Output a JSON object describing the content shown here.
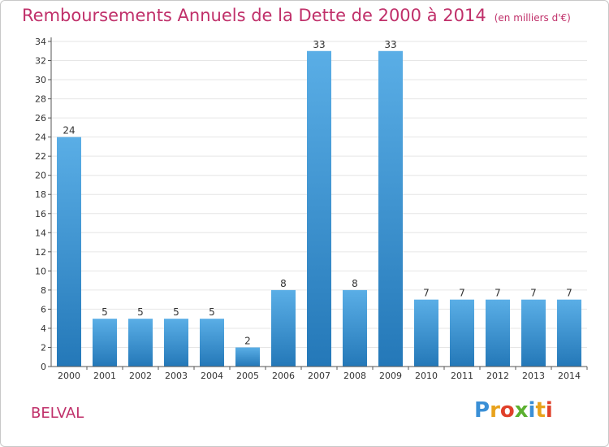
{
  "header": {
    "title": "Remboursements Annuels de la Dette de 2000 à 2014",
    "subtitle": "(en milliers d'€)"
  },
  "footer": {
    "town": "BELVAL",
    "logo": "Proxiti"
  },
  "colors": {
    "title": "#c0306a",
    "bar_light": "#5aaee6",
    "bar_dark": "#2478b8",
    "grid": "#e6e6e6",
    "axis": "#555555"
  },
  "chart_data": {
    "type": "bar",
    "title": "Remboursements Annuels de la Dette de 2000 à 2014",
    "subtitle": "(en milliers d'€)",
    "categories": [
      "2000",
      "2001",
      "2002",
      "2003",
      "2004",
      "2005",
      "2006",
      "2007",
      "2008",
      "2009",
      "2010",
      "2011",
      "2012",
      "2013",
      "2014"
    ],
    "values": [
      24,
      5,
      5,
      5,
      5,
      2,
      8,
      33,
      8,
      33,
      7,
      7,
      7,
      7,
      7
    ],
    "yticks": [
      0,
      2,
      4,
      6,
      8,
      10,
      12,
      14,
      16,
      18,
      20,
      22,
      24,
      26,
      28,
      30,
      32,
      34
    ],
    "ylim": [
      0,
      34
    ],
    "grid": true,
    "legend": "none"
  }
}
